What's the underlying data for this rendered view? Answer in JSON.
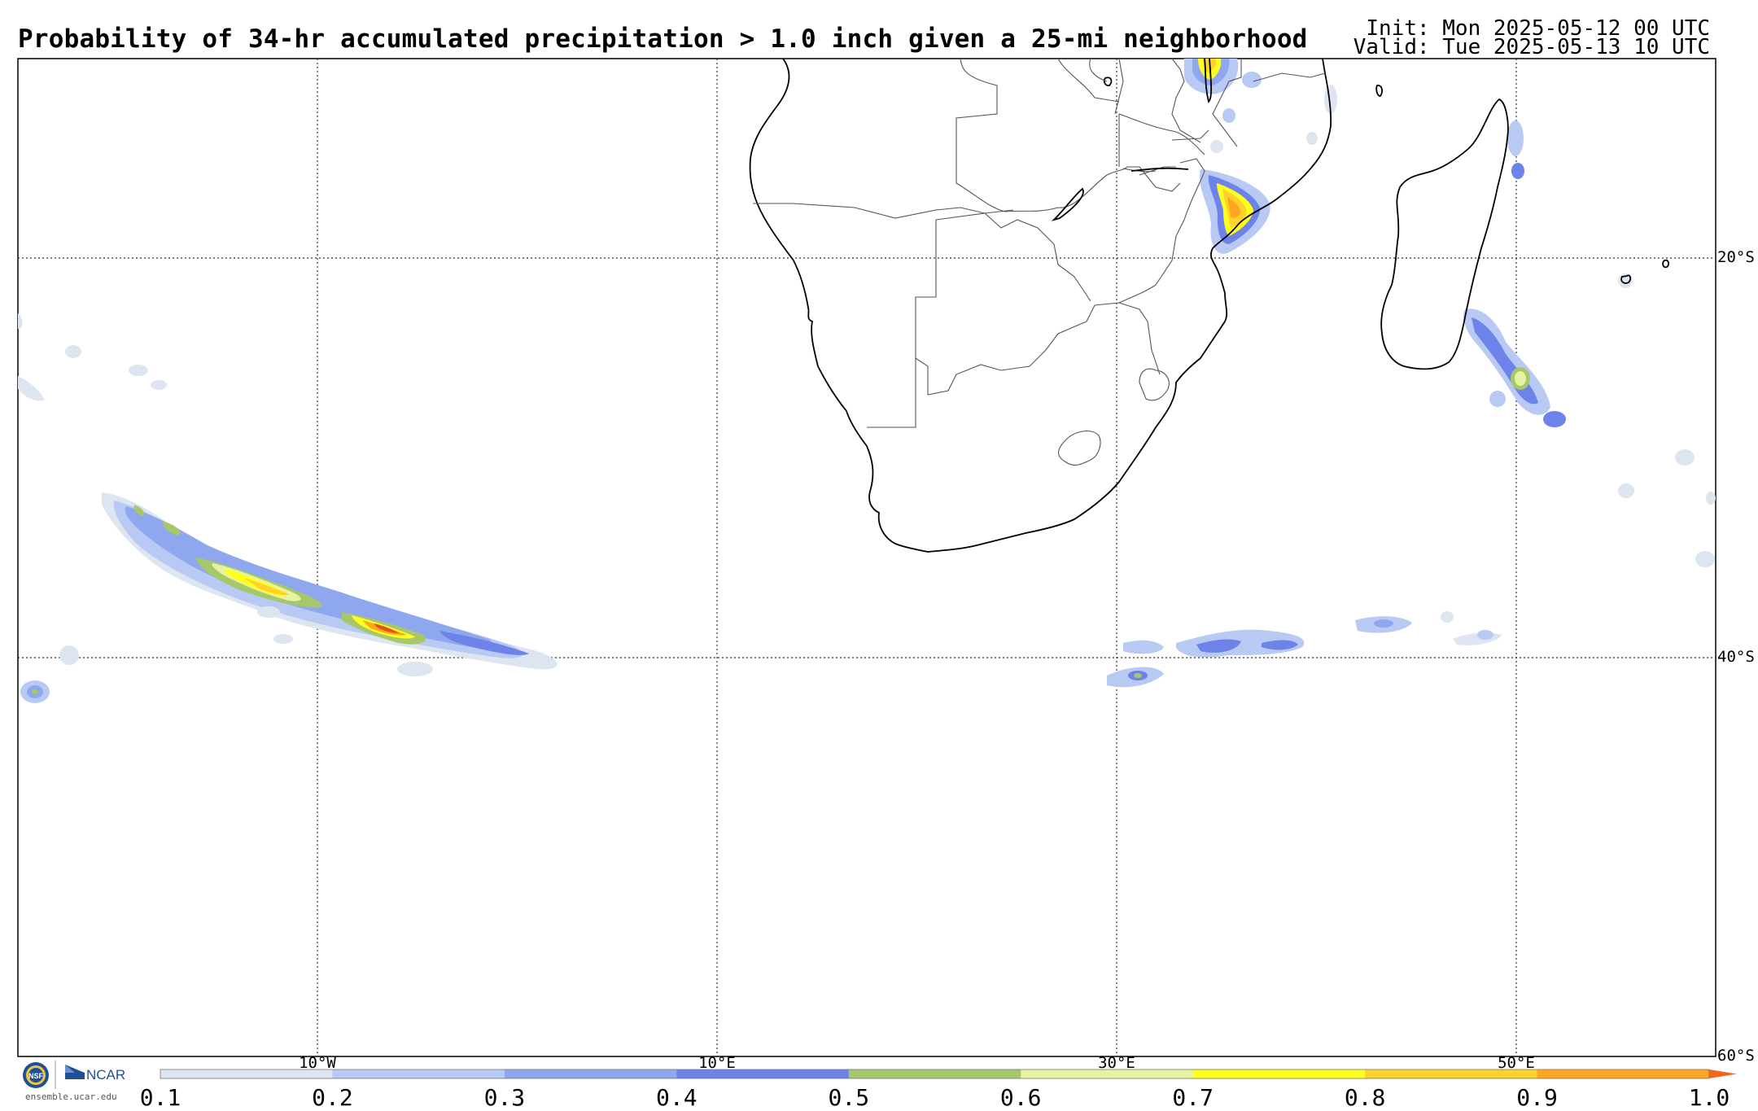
{
  "header": {
    "title": "Probability of 34-hr accumulated precipitation > 1.0 inch given a 25-mi neighborhood",
    "init": "Init: Mon 2025-05-12 00 UTC",
    "valid": "Valid: Tue 2025-05-13 10 UTC"
  },
  "map": {
    "lon_labels": [
      "10°W",
      "10°E",
      "30°E",
      "50°E"
    ],
    "lat_labels": [
      "20°S",
      "40°S",
      "60°S"
    ],
    "gridlines": true
  },
  "colorbar": {
    "ticks": [
      "0.1",
      "0.2",
      "0.3",
      "0.4",
      "0.5",
      "0.6",
      "0.7",
      "0.8",
      "0.9",
      "1.0"
    ],
    "colors": [
      "#dde5f0",
      "#b8c9f4",
      "#8fa7ef",
      "#6e83ea",
      "#a6c86a",
      "#e6f3a2",
      "#ffff1e",
      "#ffd12c",
      "#ffa51f"
    ]
  },
  "footer": {
    "logo1": "NSF",
    "logo2": "NCAR",
    "site": "ensemble.ucar.edu"
  }
}
